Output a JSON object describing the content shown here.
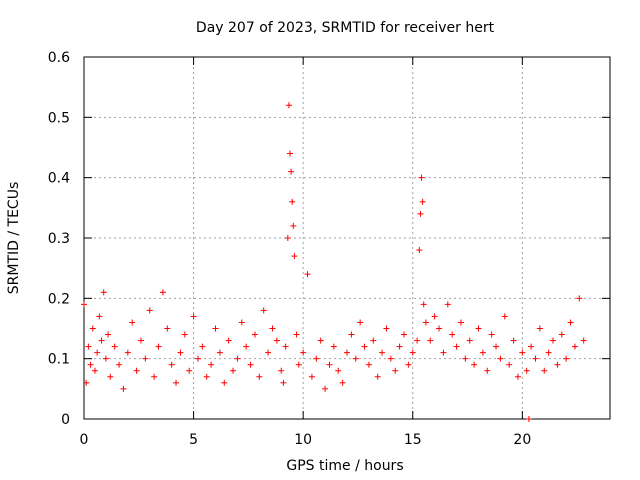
{
  "chart_data": {
    "type": "scatter",
    "title": "Day 207 of 2023, SRMTID for receiver hert",
    "xlabel": "GPS time / hours",
    "ylabel": "SRMTID / TECUs",
    "xlim": [
      0,
      24
    ],
    "ylim": [
      0,
      0.6
    ],
    "xticks": [
      0,
      5,
      10,
      15,
      20
    ],
    "xtick_labels": [
      "0",
      "5",
      "10",
      "15",
      "20"
    ],
    "yticks": [
      0,
      0.1,
      0.2,
      0.3,
      0.4,
      0.5,
      0.6
    ],
    "ytick_labels": [
      "0",
      "0.1",
      "0.2",
      "0.3",
      "0.4",
      "0.5",
      "0.6"
    ],
    "grid": true,
    "marker": "+",
    "color": "#ff0000",
    "series": [
      {
        "name": "SRMTID",
        "x": [
          0.0,
          0.1,
          0.2,
          0.3,
          0.4,
          0.5,
          0.6,
          0.7,
          0.8,
          0.9,
          1.0,
          1.1,
          1.2,
          1.4,
          1.6,
          1.8,
          2.0,
          2.2,
          2.4,
          2.6,
          2.8,
          3.0,
          3.2,
          3.4,
          3.6,
          3.8,
          4.0,
          4.2,
          4.4,
          4.6,
          4.8,
          5.0,
          5.2,
          5.4,
          5.6,
          5.8,
          6.0,
          6.2,
          6.4,
          6.6,
          6.8,
          7.0,
          7.2,
          7.4,
          7.6,
          7.8,
          8.0,
          8.2,
          8.4,
          8.6,
          8.8,
          9.0,
          9.1,
          9.2,
          9.3,
          9.35,
          9.4,
          9.45,
          9.5,
          9.55,
          9.6,
          9.7,
          9.8,
          10.0,
          10.2,
          10.4,
          10.6,
          10.8,
          11.0,
          11.2,
          11.4,
          11.6,
          11.8,
          12.0,
          12.2,
          12.4,
          12.6,
          12.8,
          13.0,
          13.2,
          13.4,
          13.6,
          13.8,
          14.0,
          14.2,
          14.4,
          14.6,
          14.8,
          15.0,
          15.2,
          15.3,
          15.35,
          15.4,
          15.45,
          15.5,
          15.6,
          15.8,
          16.0,
          16.2,
          16.4,
          16.6,
          16.8,
          17.0,
          17.2,
          17.4,
          17.6,
          17.8,
          18.0,
          18.2,
          18.4,
          18.6,
          18.8,
          19.0,
          19.2,
          19.4,
          19.6,
          19.8,
          20.0,
          20.2,
          20.3,
          20.4,
          20.6,
          20.8,
          21.0,
          21.2,
          21.4,
          21.6,
          21.8,
          22.0,
          22.2,
          22.4,
          22.6,
          22.8
        ],
        "y": [
          0.19,
          0.06,
          0.12,
          0.09,
          0.15,
          0.08,
          0.11,
          0.17,
          0.13,
          0.21,
          0.1,
          0.14,
          0.07,
          0.12,
          0.09,
          0.05,
          0.11,
          0.16,
          0.08,
          0.13,
          0.1,
          0.18,
          0.07,
          0.12,
          0.21,
          0.15,
          0.09,
          0.06,
          0.11,
          0.14,
          0.08,
          0.17,
          0.1,
          0.12,
          0.07,
          0.09,
          0.15,
          0.11,
          0.06,
          0.13,
          0.08,
          0.1,
          0.16,
          0.12,
          0.09,
          0.14,
          0.07,
          0.18,
          0.11,
          0.15,
          0.13,
          0.08,
          0.06,
          0.12,
          0.3,
          0.52,
          0.44,
          0.41,
          0.36,
          0.32,
          0.27,
          0.14,
          0.09,
          0.11,
          0.24,
          0.07,
          0.1,
          0.13,
          0.05,
          0.09,
          0.12,
          0.08,
          0.06,
          0.11,
          0.14,
          0.1,
          0.16,
          0.12,
          0.09,
          0.13,
          0.07,
          0.11,
          0.15,
          0.1,
          0.08,
          0.12,
          0.14,
          0.09,
          0.11,
          0.13,
          0.28,
          0.34,
          0.4,
          0.36,
          0.19,
          0.16,
          0.13,
          0.17,
          0.15,
          0.11,
          0.19,
          0.14,
          0.12,
          0.16,
          0.1,
          0.13,
          0.09,
          0.15,
          0.11,
          0.08,
          0.14,
          0.12,
          0.1,
          0.17,
          0.09,
          0.13,
          0.07,
          0.11,
          0.08,
          0.0,
          0.12,
          0.1,
          0.15,
          0.08,
          0.11,
          0.13,
          0.09,
          0.14,
          0.1,
          0.16,
          0.12,
          0.2,
          0.13
        ]
      }
    ]
  }
}
